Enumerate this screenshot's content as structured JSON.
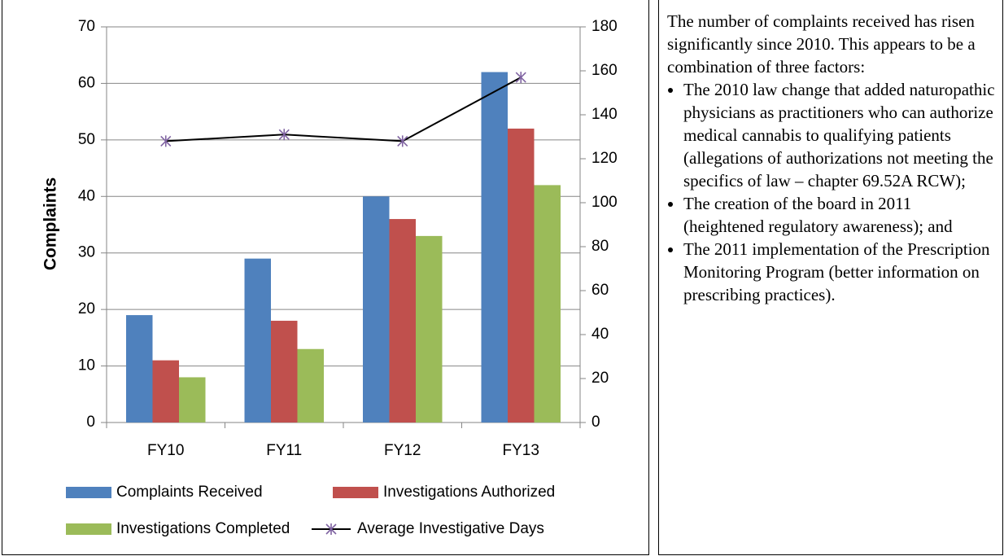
{
  "chart_data": {
    "type": "bar",
    "categories": [
      "FY10",
      "FY11",
      "FY12",
      "FY13"
    ],
    "series": [
      {
        "name": "Complaints Received",
        "color": "#4f81bd",
        "values": [
          19,
          29,
          40,
          62
        ]
      },
      {
        "name": "Investigations Authorized",
        "color": "#c0504d",
        "values": [
          11,
          18,
          36,
          52
        ]
      },
      {
        "name": "Investigations Completed",
        "color": "#9bbb59",
        "values": [
          8,
          13,
          33,
          42
        ]
      },
      {
        "name": "Average Investigative Days",
        "type": "line",
        "axis": "y2",
        "color": "#000000",
        "marker_color": "#8064a2",
        "values": [
          128,
          131,
          128,
          157
        ]
      }
    ],
    "ylabel": "Complaints",
    "ylim": [
      0,
      70
    ],
    "yticks": [
      0,
      10,
      20,
      30,
      40,
      50,
      60,
      70
    ],
    "y2lim": [
      0,
      180
    ],
    "y2ticks": [
      0,
      20,
      40,
      60,
      80,
      100,
      120,
      140,
      160,
      180
    ],
    "grid": true,
    "legend": "bottom"
  },
  "text_panel": {
    "intro": "The number of complaints received has risen significantly since 2010. This appears to be a combination of three factors:",
    "bullets": [
      "The 2010 law change that added naturopathic physicians as practitioners who can authorize medical cannabis to qualifying patients (allegations of authorizations not meeting the specifics of law – chapter 69.52A RCW);",
      "The creation of the board in 2011 (heightened regulatory awareness); and",
      "The 2011 implementation of the Prescription Monitoring Program (better information on prescribing practices)."
    ]
  }
}
